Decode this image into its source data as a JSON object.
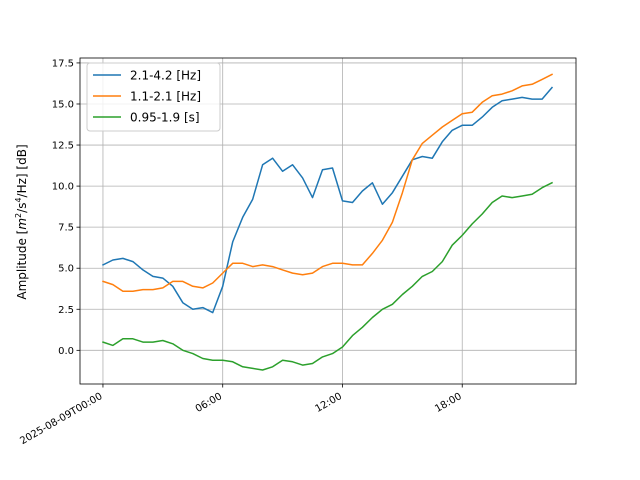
{
  "chart_data": {
    "type": "line",
    "title": "",
    "xlabel": "",
    "ylabel": "Amplitude [m²/s⁴/Hz] [dB]",
    "ylabel_parts": {
      "pre": "Amplitude [",
      "m": "m",
      "sup2": "2",
      "mid": "/s",
      "sup4": "4",
      "post": "/Hz] [dB]"
    },
    "x_unit": "hours since 2025-08-09T00:00",
    "xlim": [
      -1.15,
      23.7
    ],
    "ylim": [
      -2.05,
      17.8
    ],
    "grid": true,
    "legend_position": "upper left",
    "x_ticks": [
      {
        "value": 0,
        "label": "2025-08-09T00:00"
      },
      {
        "value": 6,
        "label": "06:00"
      },
      {
        "value": 12,
        "label": "12:00"
      },
      {
        "value": 18,
        "label": "18:00"
      }
    ],
    "y_ticks": [
      {
        "value": 0,
        "label": "0.0"
      },
      {
        "value": 2.5,
        "label": "2.5"
      },
      {
        "value": 5,
        "label": "5.0"
      },
      {
        "value": 7.5,
        "label": "7.5"
      },
      {
        "value": 10,
        "label": "10.0"
      },
      {
        "value": 12.5,
        "label": "12.5"
      },
      {
        "value": 15,
        "label": "15.0"
      },
      {
        "value": 17.5,
        "label": "17.5"
      }
    ],
    "x": [
      0,
      0.5,
      1,
      1.5,
      2,
      2.5,
      3,
      3.5,
      4,
      4.5,
      5,
      5.5,
      6,
      6.5,
      7,
      7.5,
      8,
      8.5,
      9,
      9.5,
      10,
      10.5,
      11,
      11.5,
      12,
      12.5,
      13,
      13.5,
      14,
      14.5,
      15,
      15.5,
      16,
      16.5,
      17,
      17.5,
      18,
      18.5,
      19,
      19.5,
      20,
      20.5,
      21,
      21.5,
      22,
      22.5
    ],
    "series": [
      {
        "name": "2.1-4.2 [Hz]",
        "color": "#1f77b4",
        "values": [
          5.2,
          5.5,
          5.6,
          5.4,
          4.9,
          4.5,
          4.4,
          3.9,
          2.9,
          2.5,
          2.6,
          2.3,
          3.9,
          6.6,
          8.1,
          9.2,
          11.3,
          11.7,
          10.9,
          11.3,
          10.5,
          9.3,
          11.0,
          11.1,
          9.1,
          9.0,
          9.7,
          10.2,
          8.9,
          9.6,
          10.6,
          11.6,
          11.8,
          11.7,
          12.7,
          13.4,
          13.7,
          13.7,
          14.2,
          14.8,
          15.2,
          15.3,
          15.4,
          15.3,
          15.3,
          16.0
        ]
      },
      {
        "name": "1.1-2.1 [Hz]",
        "color": "#ff7f0e",
        "values": [
          4.2,
          4.0,
          3.6,
          3.6,
          3.7,
          3.7,
          3.8,
          4.2,
          4.2,
          3.9,
          3.8,
          4.1,
          4.7,
          5.3,
          5.3,
          5.1,
          5.2,
          5.1,
          4.9,
          4.7,
          4.6,
          4.7,
          5.1,
          5.3,
          5.3,
          5.2,
          5.2,
          5.9,
          6.7,
          7.8,
          9.6,
          11.6,
          12.6,
          13.1,
          13.6,
          14.0,
          14.4,
          14.5,
          15.1,
          15.5,
          15.6,
          15.8,
          16.1,
          16.2,
          16.5,
          16.8
        ]
      },
      {
        "name": "0.95-1.9 [s]",
        "color": "#2ca02c",
        "values": [
          0.5,
          0.3,
          0.7,
          0.7,
          0.5,
          0.5,
          0.6,
          0.4,
          0.0,
          -0.2,
          -0.5,
          -0.6,
          -0.6,
          -0.7,
          -1.0,
          -1.1,
          -1.2,
          -1.0,
          -0.6,
          -0.7,
          -0.9,
          -0.8,
          -0.4,
          -0.2,
          0.2,
          0.9,
          1.4,
          2.0,
          2.5,
          2.8,
          3.4,
          3.9,
          4.5,
          4.8,
          5.4,
          6.4,
          7.0,
          7.7,
          8.3,
          9.0,
          9.4,
          9.3,
          9.4,
          9.5,
          9.9,
          10.2
        ]
      }
    ]
  }
}
